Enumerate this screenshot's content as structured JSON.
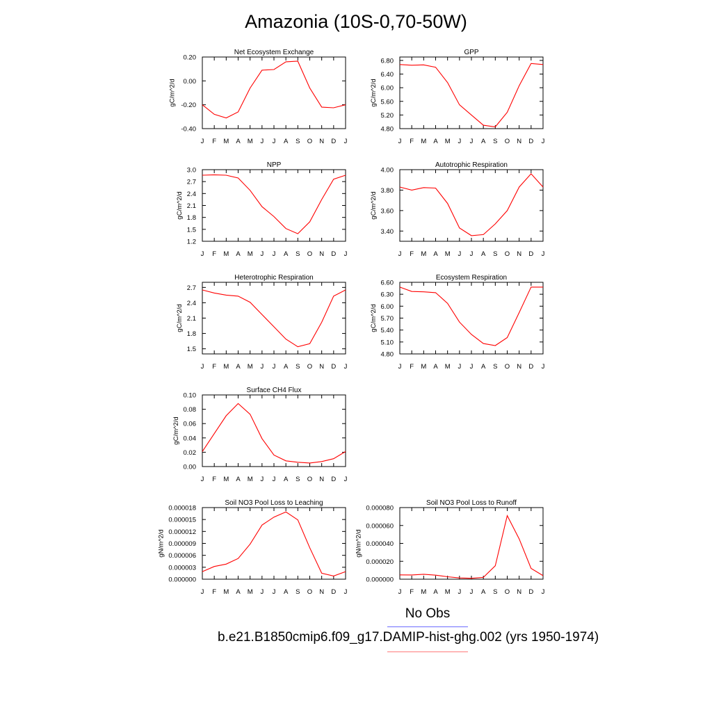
{
  "figure": {
    "title": "Amazonia (10S-0,70-50W)",
    "legend": [
      {
        "label": "No Obs",
        "color": "#6b6bff"
      },
      {
        "label": "b.e21.B1850cmip6.f09_g17.DAMIP-hist-ghg.002 (yrs 1950-1974)",
        "color": "#ff0000"
      }
    ]
  },
  "chart_data": [
    {
      "type": "line",
      "title": "Net Ecosystem Exchange",
      "ylabel": "gC/m^2/d",
      "categories": [
        "J",
        "F",
        "M",
        "A",
        "M",
        "J",
        "J",
        "A",
        "S",
        "O",
        "N",
        "D",
        "J"
      ],
      "yticks": [
        "0.20",
        "0.00",
        "-0.20",
        "-0.40"
      ],
      "ylim": [
        -0.4,
        0.2
      ],
      "series": [
        {
          "color": "#ff0000",
          "values": [
            -0.2,
            -0.28,
            -0.31,
            -0.26,
            -0.06,
            0.09,
            0.095,
            0.16,
            0.165,
            -0.06,
            -0.22,
            -0.225,
            -0.2
          ]
        }
      ]
    },
    {
      "type": "line",
      "title": "GPP",
      "ylabel": "gC/m^2/d",
      "categories": [
        "J",
        "F",
        "M",
        "A",
        "M",
        "J",
        "J",
        "A",
        "S",
        "O",
        "N",
        "D",
        "J"
      ],
      "yticks": [
        "6.80",
        "6.40",
        "6.00",
        "5.60",
        "5.20",
        "4.80"
      ],
      "ylim": [
        4.8,
        6.9
      ],
      "series": [
        {
          "color": "#ff0000",
          "values": [
            6.68,
            6.66,
            6.67,
            6.6,
            6.15,
            5.5,
            5.2,
            4.9,
            4.85,
            5.28,
            6.06,
            6.71,
            6.68
          ]
        }
      ]
    },
    {
      "type": "line",
      "title": "NPP",
      "ylabel": "gC/m^2/d",
      "categories": [
        "J",
        "F",
        "M",
        "A",
        "M",
        "J",
        "J",
        "A",
        "S",
        "O",
        "N",
        "D",
        "J"
      ],
      "yticks": [
        "3.0",
        "2.7",
        "2.4",
        "2.1",
        "1.8",
        "1.5",
        "1.2"
      ],
      "ylim": [
        1.2,
        3.0
      ],
      "series": [
        {
          "color": "#ff0000",
          "values": [
            2.86,
            2.87,
            2.86,
            2.79,
            2.48,
            2.07,
            1.82,
            1.52,
            1.39,
            1.69,
            2.25,
            2.76,
            2.86
          ]
        }
      ]
    },
    {
      "type": "line",
      "title": "Autotrophic Respiration",
      "ylabel": "gC/m^2/d",
      "categories": [
        "J",
        "F",
        "M",
        "A",
        "M",
        "J",
        "J",
        "A",
        "S",
        "O",
        "N",
        "D",
        "J"
      ],
      "yticks": [
        "4.00",
        "3.80",
        "3.60",
        "3.40"
      ],
      "ylim": [
        3.3,
        4.0
      ],
      "series": [
        {
          "color": "#ff0000",
          "values": [
            3.83,
            3.8,
            3.825,
            3.82,
            3.67,
            3.43,
            3.355,
            3.365,
            3.47,
            3.6,
            3.83,
            3.96,
            3.83
          ]
        }
      ]
    },
    {
      "type": "line",
      "title": "Heterotrophic Respiration",
      "ylabel": "gC/m^2/d",
      "categories": [
        "J",
        "F",
        "M",
        "A",
        "M",
        "J",
        "J",
        "A",
        "S",
        "O",
        "N",
        "D",
        "J"
      ],
      "yticks": [
        "2.7",
        "2.4",
        "2.1",
        "1.8",
        "1.5"
      ],
      "ylim": [
        1.4,
        2.8
      ],
      "series": [
        {
          "color": "#ff0000",
          "values": [
            2.65,
            2.59,
            2.55,
            2.53,
            2.41,
            2.17,
            1.93,
            1.69,
            1.54,
            1.6,
            2.02,
            2.53,
            2.65
          ]
        }
      ]
    },
    {
      "type": "line",
      "title": "Ecosystem Respiration",
      "ylabel": "gC/m^2/d",
      "categories": [
        "J",
        "F",
        "M",
        "A",
        "M",
        "J",
        "J",
        "A",
        "S",
        "O",
        "N",
        "D",
        "J"
      ],
      "yticks": [
        "6.60",
        "6.30",
        "6.00",
        "5.70",
        "5.40",
        "5.10",
        "4.80"
      ],
      "ylim": [
        4.8,
        6.6
      ],
      "series": [
        {
          "color": "#ff0000",
          "values": [
            6.48,
            6.37,
            6.36,
            6.34,
            6.07,
            5.6,
            5.29,
            5.06,
            5.01,
            5.21,
            5.84,
            6.48,
            6.48
          ]
        }
      ]
    },
    {
      "type": "line",
      "title": "Surface CH4 Flux",
      "ylabel": "gC/m^2/d",
      "categories": [
        "J",
        "F",
        "M",
        "A",
        "M",
        "J",
        "J",
        "A",
        "S",
        "O",
        "N",
        "D",
        "J"
      ],
      "yticks": [
        "0.10",
        "0.08",
        "0.06",
        "0.04",
        "0.02",
        "0.00"
      ],
      "ylim": [
        0.0,
        0.1
      ],
      "series": [
        {
          "color": "#ff0000",
          "values": [
            0.021,
            0.046,
            0.071,
            0.088,
            0.073,
            0.039,
            0.016,
            0.008,
            0.006,
            0.005,
            0.007,
            0.011,
            0.021
          ]
        }
      ]
    },
    {
      "type": "line",
      "title": "Soil NO3 Pool Loss to Leaching",
      "ylabel": "gN/m^2/d",
      "categories": [
        "J",
        "F",
        "M",
        "A",
        "M",
        "J",
        "J",
        "A",
        "S",
        "O",
        "N",
        "D",
        "J"
      ],
      "yticks": [
        "0.000018",
        "0.000015",
        "0.000012",
        "0.000009",
        "0.000006",
        "0.000003",
        "0.000000"
      ],
      "ylim": [
        0.0,
        1.8e-05
      ],
      "series": [
        {
          "color": "#ff0000",
          "values": [
            1.9e-06,
            3.2e-06,
            3.8e-06,
            5.2e-06,
            8.8e-06,
            1.36e-05,
            1.56e-05,
            1.69e-05,
            1.49e-05,
            7.9e-06,
            1.5e-06,
            8e-07,
            1.9e-06
          ]
        }
      ]
    },
    {
      "type": "line",
      "title": "Soil NO3 Pool Loss to Runoff",
      "ylabel": "gN/m^2/d",
      "categories": [
        "J",
        "F",
        "M",
        "A",
        "M",
        "J",
        "J",
        "A",
        "S",
        "O",
        "N",
        "D",
        "J"
      ],
      "yticks": [
        "0.000080",
        "0.000060",
        "0.000040",
        "0.000020",
        "0.000000"
      ],
      "ylim": [
        0.0,
        8e-05
      ],
      "series": [
        {
          "color": "#ff0000",
          "values": [
            4.8e-06,
            4.7e-06,
            5.5e-06,
            4.5e-06,
            2.7e-06,
            1.4e-06,
            1e-06,
            2e-06,
            1.5e-05,
            7.1e-05,
            4.5e-05,
            1.2e-05,
            4e-06
          ]
        }
      ]
    }
  ]
}
